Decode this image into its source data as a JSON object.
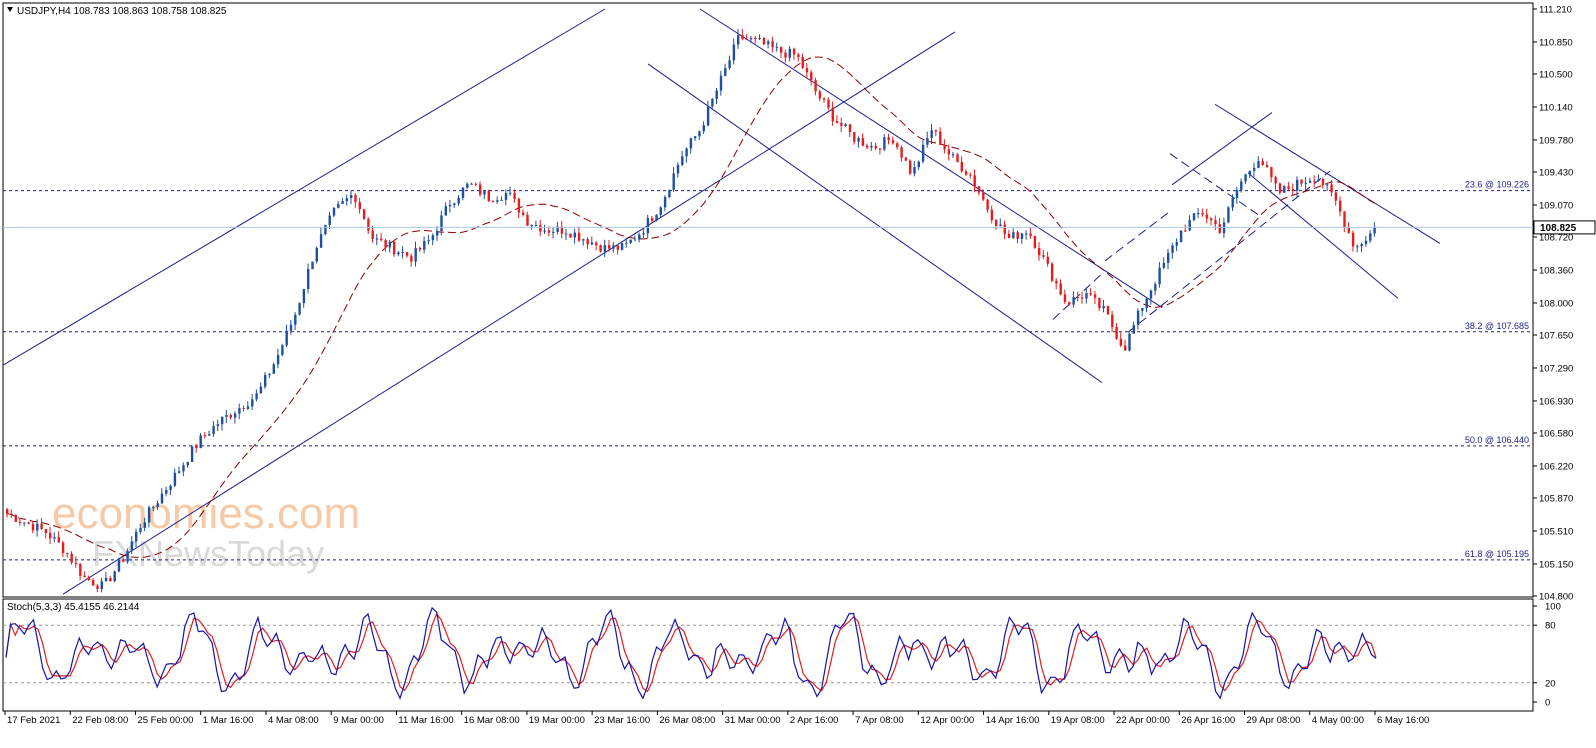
{
  "chart": {
    "header": "USDJPY,H4  108.783 108.863 108.758 108.825",
    "current_price_label": "108.825",
    "watermark_primary": "economies.com",
    "watermark_secondary": "FXNewsToday",
    "colors": {
      "bull": "#1f4fa0",
      "bear": "#e51d1d",
      "channel": "#1d1d8c",
      "ma": "#8b0000",
      "fib": "#1d1d8c",
      "stoch_main": "#1414a8",
      "stoch_signal": "#e51d1d",
      "current_line": "#a8c8e8"
    }
  },
  "chart_data": [
    {
      "type": "candlestick",
      "symbol": "USDJPY",
      "timeframe": "H4",
      "ohlc_last": {
        "open": 108.783,
        "high": 108.863,
        "low": 108.758,
        "close": 108.825
      },
      "ylim": [
        104.8,
        111.21
      ],
      "yticks": [
        "111.210",
        "110.850",
        "110.500",
        "110.140",
        "109.780",
        "109.430",
        "109.070",
        "108.720",
        "108.360",
        "108.000",
        "107.650",
        "107.290",
        "106.930",
        "106.580",
        "106.220",
        "105.870",
        "105.510",
        "105.150",
        "104.800"
      ],
      "xticks": [
        "17 Feb 2021",
        "22 Feb 08:00",
        "25 Feb 00:00",
        "1 Mar 16:00",
        "4 Mar 08:00",
        "9 Mar 00:00",
        "11 Mar 16:00",
        "16 Mar 08:00",
        "19 Mar 00:00",
        "23 Mar 16:00",
        "26 Mar 08:00",
        "31 Mar 00:00",
        "2 Apr 16:00",
        "7 Apr 08:00",
        "12 Apr 00:00",
        "14 Apr 16:00",
        "19 Apr 08:00",
        "22 Apr 00:00",
        "26 Apr 16:00",
        "29 Apr 08:00",
        "4 May 00:00",
        "6 May 16:00"
      ],
      "price_path": [
        105.7,
        105.6,
        105.5,
        105.3,
        105.0,
        104.9,
        105.2,
        105.6,
        105.9,
        106.2,
        106.5,
        106.7,
        106.85,
        107.0,
        107.4,
        107.9,
        108.6,
        109.0,
        109.2,
        108.7,
        108.6,
        108.5,
        108.7,
        109.1,
        109.3,
        109.15,
        109.2,
        108.9,
        108.8,
        108.8,
        108.7,
        108.6,
        108.6,
        108.8,
        109.1,
        109.6,
        109.9,
        110.4,
        110.9,
        110.85,
        110.75,
        110.7,
        110.3,
        110.0,
        109.8,
        109.7,
        109.8,
        109.4,
        109.9,
        109.6,
        109.4,
        109.0,
        108.7,
        108.8,
        108.4,
        108.0,
        108.1,
        107.9,
        107.5,
        108.0,
        108.4,
        108.8,
        109.0,
        108.8,
        109.3,
        109.6,
        109.2,
        109.3,
        109.4,
        109.1,
        108.6,
        108.8
      ],
      "fibonacci_levels": [
        {
          "label": "23.6 @ 109.226",
          "value": 109.226
        },
        {
          "label": "38.2 @ 107.685",
          "value": 107.685
        },
        {
          "label": "50.0 @ 106.440",
          "value": 106.44
        },
        {
          "label": "61.8 @ 105.195",
          "value": 105.195
        }
      ]
    },
    {
      "type": "line",
      "indicator": "Stoch(5,3,3)",
      "header": "Stoch(5,3,3) 45.4155 46.2144",
      "main": 45.4155,
      "signal": 46.2144,
      "ylim": [
        0,
        100
      ],
      "yticks": [
        "100",
        "80",
        "20",
        "0"
      ],
      "levels": [
        80,
        20
      ]
    }
  ]
}
